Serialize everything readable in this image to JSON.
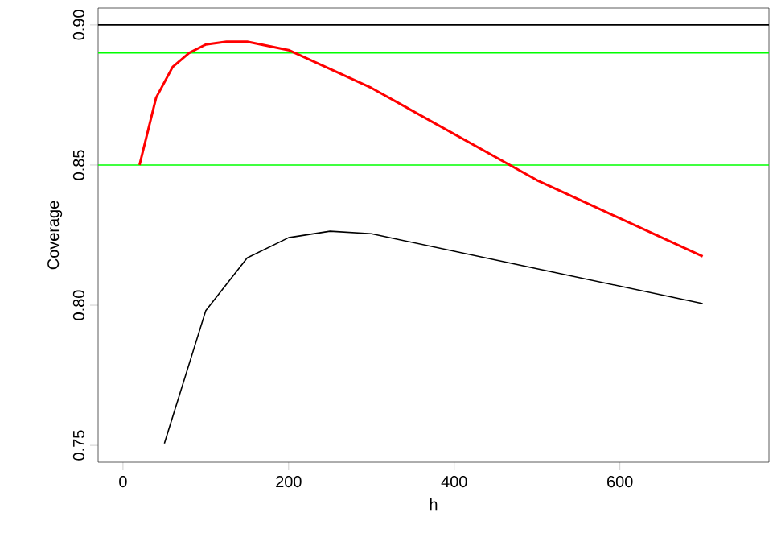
{
  "chart_data": {
    "type": "line",
    "xlabel": "h",
    "ylabel": "Coverage",
    "xlim": [
      -30,
      780
    ],
    "ylim": [
      0.744,
      0.906
    ],
    "xticks": [
      0,
      200,
      400,
      600
    ],
    "yticks": [
      {
        "value": 0.75,
        "label": "0.75"
      },
      {
        "value": 0.8,
        "label": "0.80"
      },
      {
        "value": 0.85,
        "label": "0.85"
      },
      {
        "value": 0.9,
        "label": "0.90"
      }
    ],
    "series": [
      {
        "color": "#ff0000",
        "x": [
          20,
          40,
          60,
          80,
          100,
          125,
          150,
          200,
          300,
          500,
          700
        ],
        "values": [
          0.85,
          0.874,
          0.885,
          0.89,
          0.893,
          0.894,
          0.894,
          0.891,
          0.8775,
          0.8446,
          0.8174
        ]
      },
      {
        "color": "#000000",
        "x": [
          50,
          100,
          150,
          200,
          250,
          300,
          500,
          700
        ],
        "values": [
          0.7507,
          0.7981,
          0.8169,
          0.8241,
          0.8264,
          0.8255,
          0.813,
          0.8006
        ]
      }
    ],
    "ref_lines": [
      {
        "axis": "y",
        "value": 0.9,
        "color": "#000000"
      },
      {
        "axis": "y",
        "value": 0.89,
        "color": "#00ff00"
      },
      {
        "axis": "y",
        "value": 0.85,
        "color": "#00ff00"
      }
    ],
    "grid": false
  }
}
